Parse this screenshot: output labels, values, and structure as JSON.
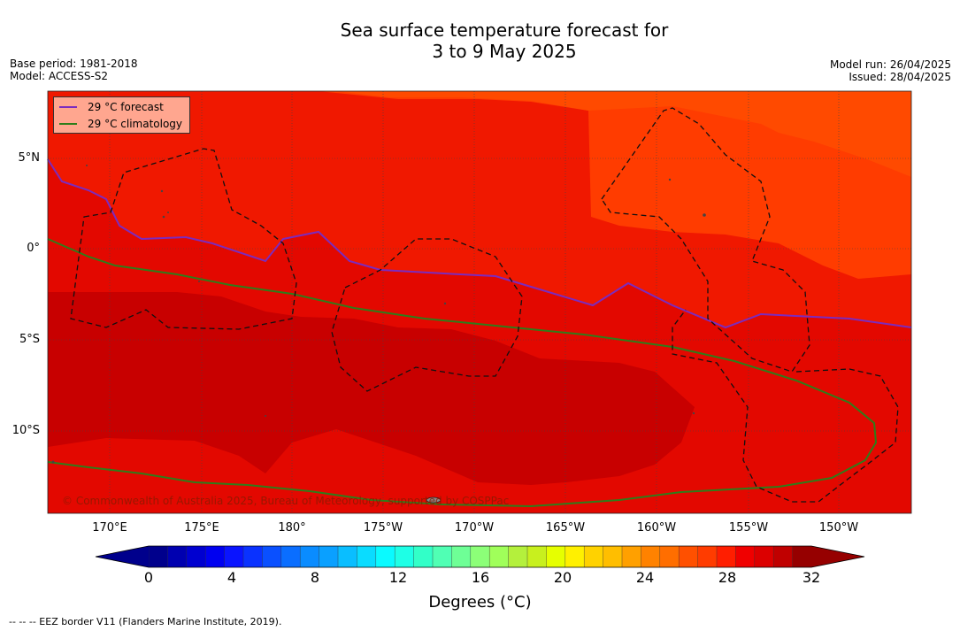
{
  "title": {
    "line1": "Sea surface temperature forecast for",
    "line2": "3 to 9 May 2025"
  },
  "info_left": {
    "base_period": "Base period: 1981-2018",
    "model": "Model: ACCESS-S2"
  },
  "info_right": {
    "model_run": "Model run: 26/04/2025",
    "issued": "Issued: 28/04/2025"
  },
  "legend": {
    "forecast_label": "29 °C  forecast",
    "forecast_color": "#7b2bbf",
    "climatology_label": "29 °C  climatology",
    "climatology_color": "#2e7d1a"
  },
  "axes": {
    "lon_labels": [
      "170°E",
      "175°E",
      "180°",
      "175°W",
      "170°W",
      "165°W",
      "160°W",
      "155°W",
      "150°W"
    ],
    "lat_labels": [
      "5°N",
      "0°",
      "5°S",
      "10°S"
    ]
  },
  "attribution": "© Commonwealth of Australia 2025, Bureau of Meteorology, supported by COSPPac",
  "colorbar": {
    "tick_labels": [
      "0",
      "4",
      "8",
      "12",
      "16",
      "20",
      "24",
      "28",
      "32"
    ],
    "title": "Degrees (°C)",
    "colors": [
      "#00008c",
      "#0000b0",
      "#0000d0",
      "#0000f0",
      "#0a14ff",
      "#0a32ff",
      "#0a50ff",
      "#0a6eff",
      "#0a8cff",
      "#0aa0ff",
      "#0abeff",
      "#0adcff",
      "#0afaff",
      "#1effe6",
      "#32ffc8",
      "#50ffb4",
      "#6eff96",
      "#8cff78",
      "#a0ff5a",
      "#b4f03c",
      "#c8f01e",
      "#e6ff00",
      "#fff000",
      "#ffd200",
      "#ffbe00",
      "#ffa000",
      "#ff8200",
      "#ff6e00",
      "#ff5000",
      "#ff3c00",
      "#ff1e00",
      "#f00000",
      "#dc0000",
      "#c00000",
      "#960000"
    ]
  },
  "footnote": "--  --  -- EEZ border V11 (Flanders Marine Institute, 2019)."
}
